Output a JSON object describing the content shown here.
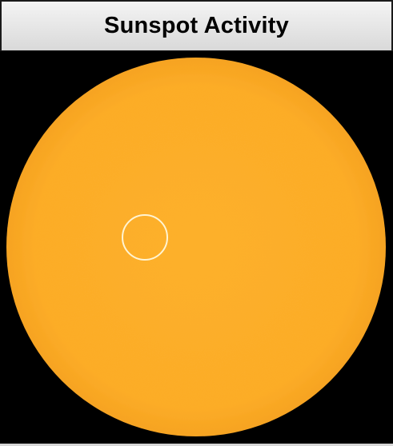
{
  "title": "Sunspot Activity",
  "colors": {
    "sun_disk": "#FDAF2A",
    "background": "#000000",
    "marker_ring": "#FFF4D2",
    "title_bg": "#E6E6E6"
  },
  "marker": {
    "shape": "circle",
    "description_visible": false
  }
}
